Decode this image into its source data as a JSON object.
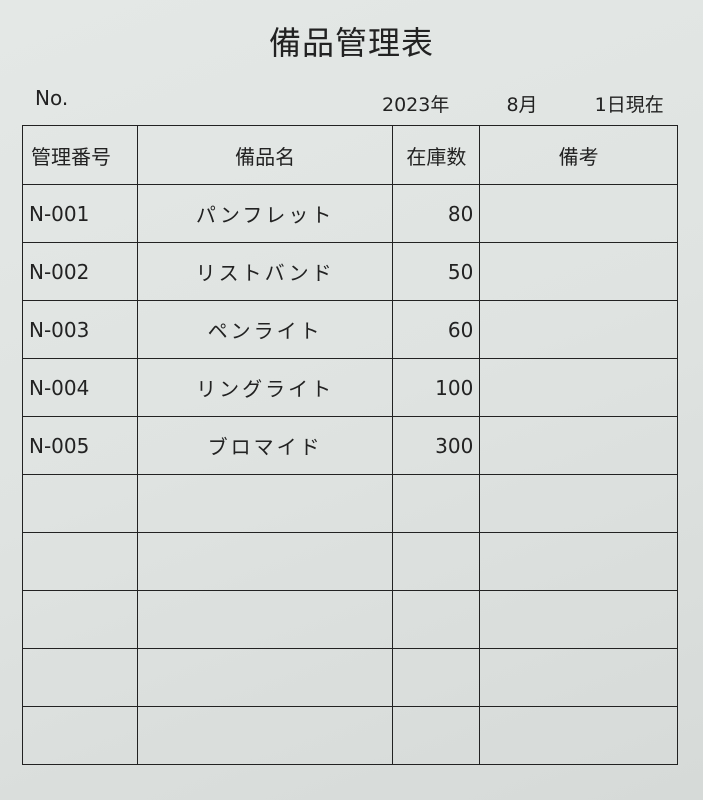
{
  "title": "備品管理表",
  "no_label": "No.",
  "date": {
    "year": "2023年",
    "month": "8月",
    "day": "1日現在"
  },
  "table": {
    "headers": [
      "管理番号",
      "備品名",
      "在庫数",
      "備考"
    ],
    "rows": [
      {
        "id": "N-001",
        "name": "パンフレット",
        "qty": "80",
        "note": ""
      },
      {
        "id": "N-002",
        "name": "リストバンド",
        "qty": "50",
        "note": ""
      },
      {
        "id": "N-003",
        "name": "ペンライト",
        "qty": "60",
        "note": ""
      },
      {
        "id": "N-004",
        "name": "リングライト",
        "qty": "100",
        "note": ""
      },
      {
        "id": "N-005",
        "name": "ブロマイド",
        "qty": "300",
        "note": ""
      },
      {
        "id": "",
        "name": "",
        "qty": "",
        "note": ""
      },
      {
        "id": "",
        "name": "",
        "qty": "",
        "note": ""
      },
      {
        "id": "",
        "name": "",
        "qty": "",
        "note": ""
      },
      {
        "id": "",
        "name": "",
        "qty": "",
        "note": ""
      },
      {
        "id": "",
        "name": "",
        "qty": "",
        "note": ""
      }
    ]
  }
}
